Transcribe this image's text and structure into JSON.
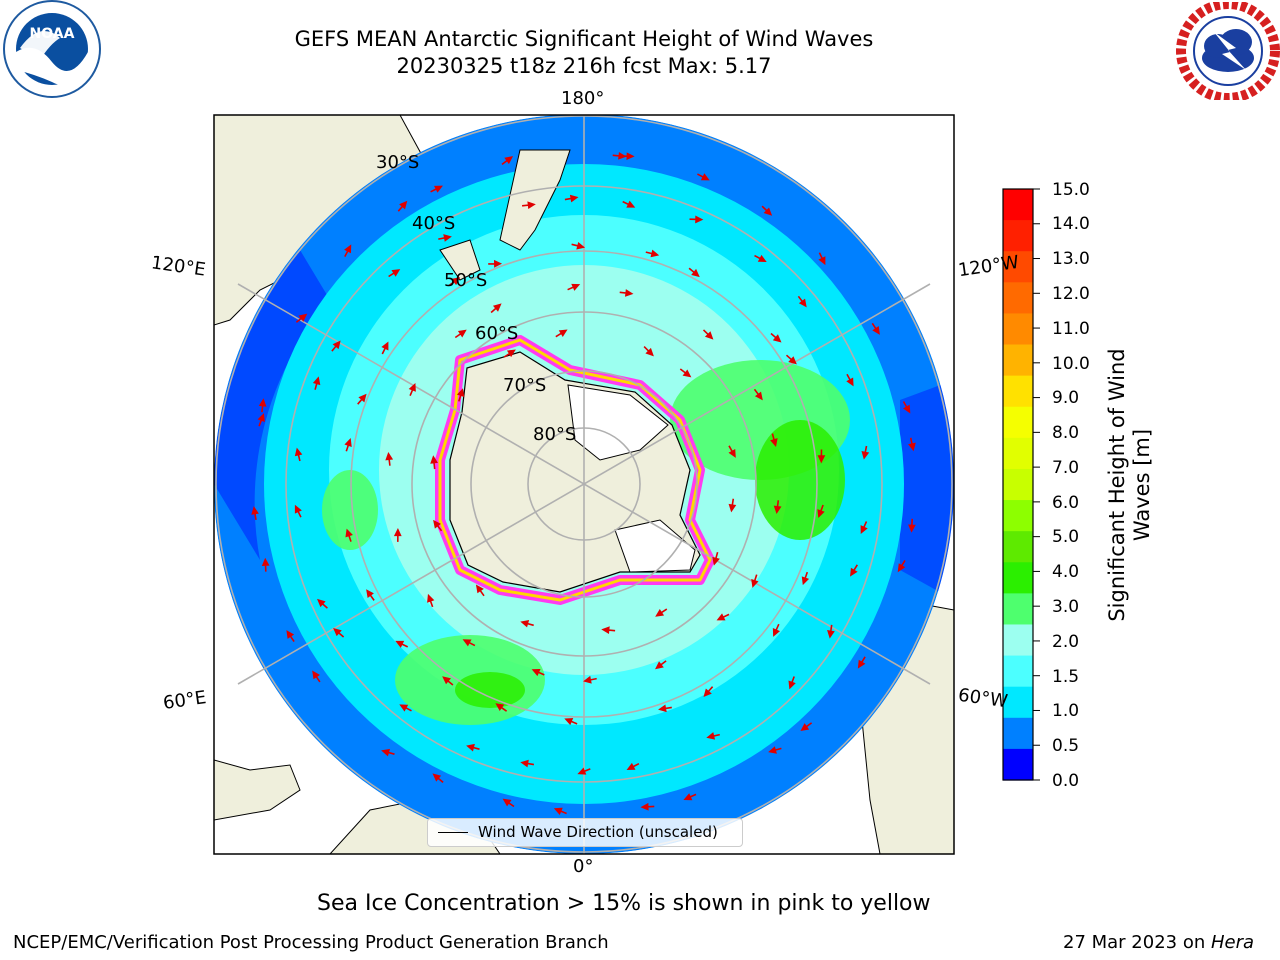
{
  "title": {
    "line1": "GEFS MEAN Antarctic Significant Height of Wind Waves",
    "line2": "20230325 t18z 216h fcst   Max: 5.17"
  },
  "map": {
    "longitude_labels": [
      "180°",
      "120°E",
      "120°W",
      "60°E",
      "60°W",
      "0°"
    ],
    "latitude_labels": [
      "30°S",
      "40°S",
      "50°S",
      "60°S",
      "70°S",
      "80°S"
    ],
    "legend_label": "Wind Wave Direction (unscaled)"
  },
  "colorbar": {
    "label": "Significant Height of Wind Waves [m]",
    "ticks": [
      "15.0",
      "14.0",
      "13.0",
      "12.0",
      "11.0",
      "10.0",
      "9.0",
      "8.0",
      "7.0",
      "6.0",
      "5.0",
      "4.0",
      "3.0",
      "2.0",
      "1.5",
      "1.0",
      "0.5",
      "0.0"
    ],
    "colors": [
      "#ff0000",
      "#ff2000",
      "#ff4a00",
      "#ff6a00",
      "#ff8a00",
      "#ffb300",
      "#ffe100",
      "#f5ff00",
      "#e1ff00",
      "#c8ff00",
      "#8dff00",
      "#5eea00",
      "#2bef00",
      "#4eff6e",
      "#9cfff0",
      "#4cffff",
      "#00e8ff",
      "#0080ff",
      "#0000ff"
    ]
  },
  "note": "Sea Ice Concentration > 15% is shown in pink to yellow",
  "footer": {
    "left": "NCEP/EMC/Verification Post Processing Product Generation Branch",
    "date": "27 Mar 2023 on ",
    "machine": "Hera"
  },
  "logos": {
    "noaa": "NOAA",
    "nws": "NATIONAL WEATHER SERVICE"
  }
}
